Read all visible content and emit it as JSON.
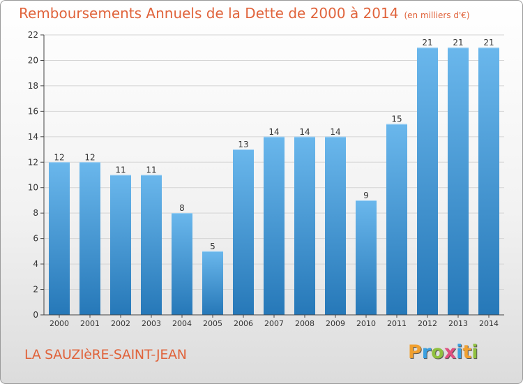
{
  "title": "Remboursements Annuels de la Dette de 2000 à 2014",
  "subtitle": "(en milliers d'€)",
  "commune": "LA SAUZIèRE-SAINT-JEAN",
  "logo": {
    "letters": [
      "P",
      "r",
      "o",
      "x",
      "i",
      "t",
      "i"
    ],
    "colors": [
      "#f0a030",
      "#3aa0e0",
      "#90c040",
      "#e05080",
      "#3aa0e0",
      "#f0a030",
      "#90c040"
    ]
  },
  "colors": {
    "bar_light": "#6ab7ec",
    "bar_dark": "#2678b8",
    "accent": "#e0633b"
  },
  "chart_data": {
    "type": "bar",
    "categories": [
      "2000",
      "2001",
      "2002",
      "2003",
      "2004",
      "2005",
      "2006",
      "2007",
      "2008",
      "2009",
      "2010",
      "2011",
      "2012",
      "2013",
      "2014"
    ],
    "values": [
      12,
      12,
      11,
      11,
      8,
      5,
      13,
      14,
      14,
      14,
      9,
      15,
      21,
      21,
      21
    ],
    "value_labels": [
      "12",
      "12",
      "11",
      "11",
      "8",
      "5",
      "13",
      "14",
      "14",
      "14",
      "9",
      "15",
      "21",
      "21",
      "21"
    ],
    "yticks": [
      "0",
      "2",
      "4",
      "6",
      "8",
      "10",
      "12",
      "14",
      "16",
      "18",
      "20",
      "22"
    ],
    "ylim": [
      0,
      22
    ],
    "grid": true,
    "legend": "none"
  }
}
